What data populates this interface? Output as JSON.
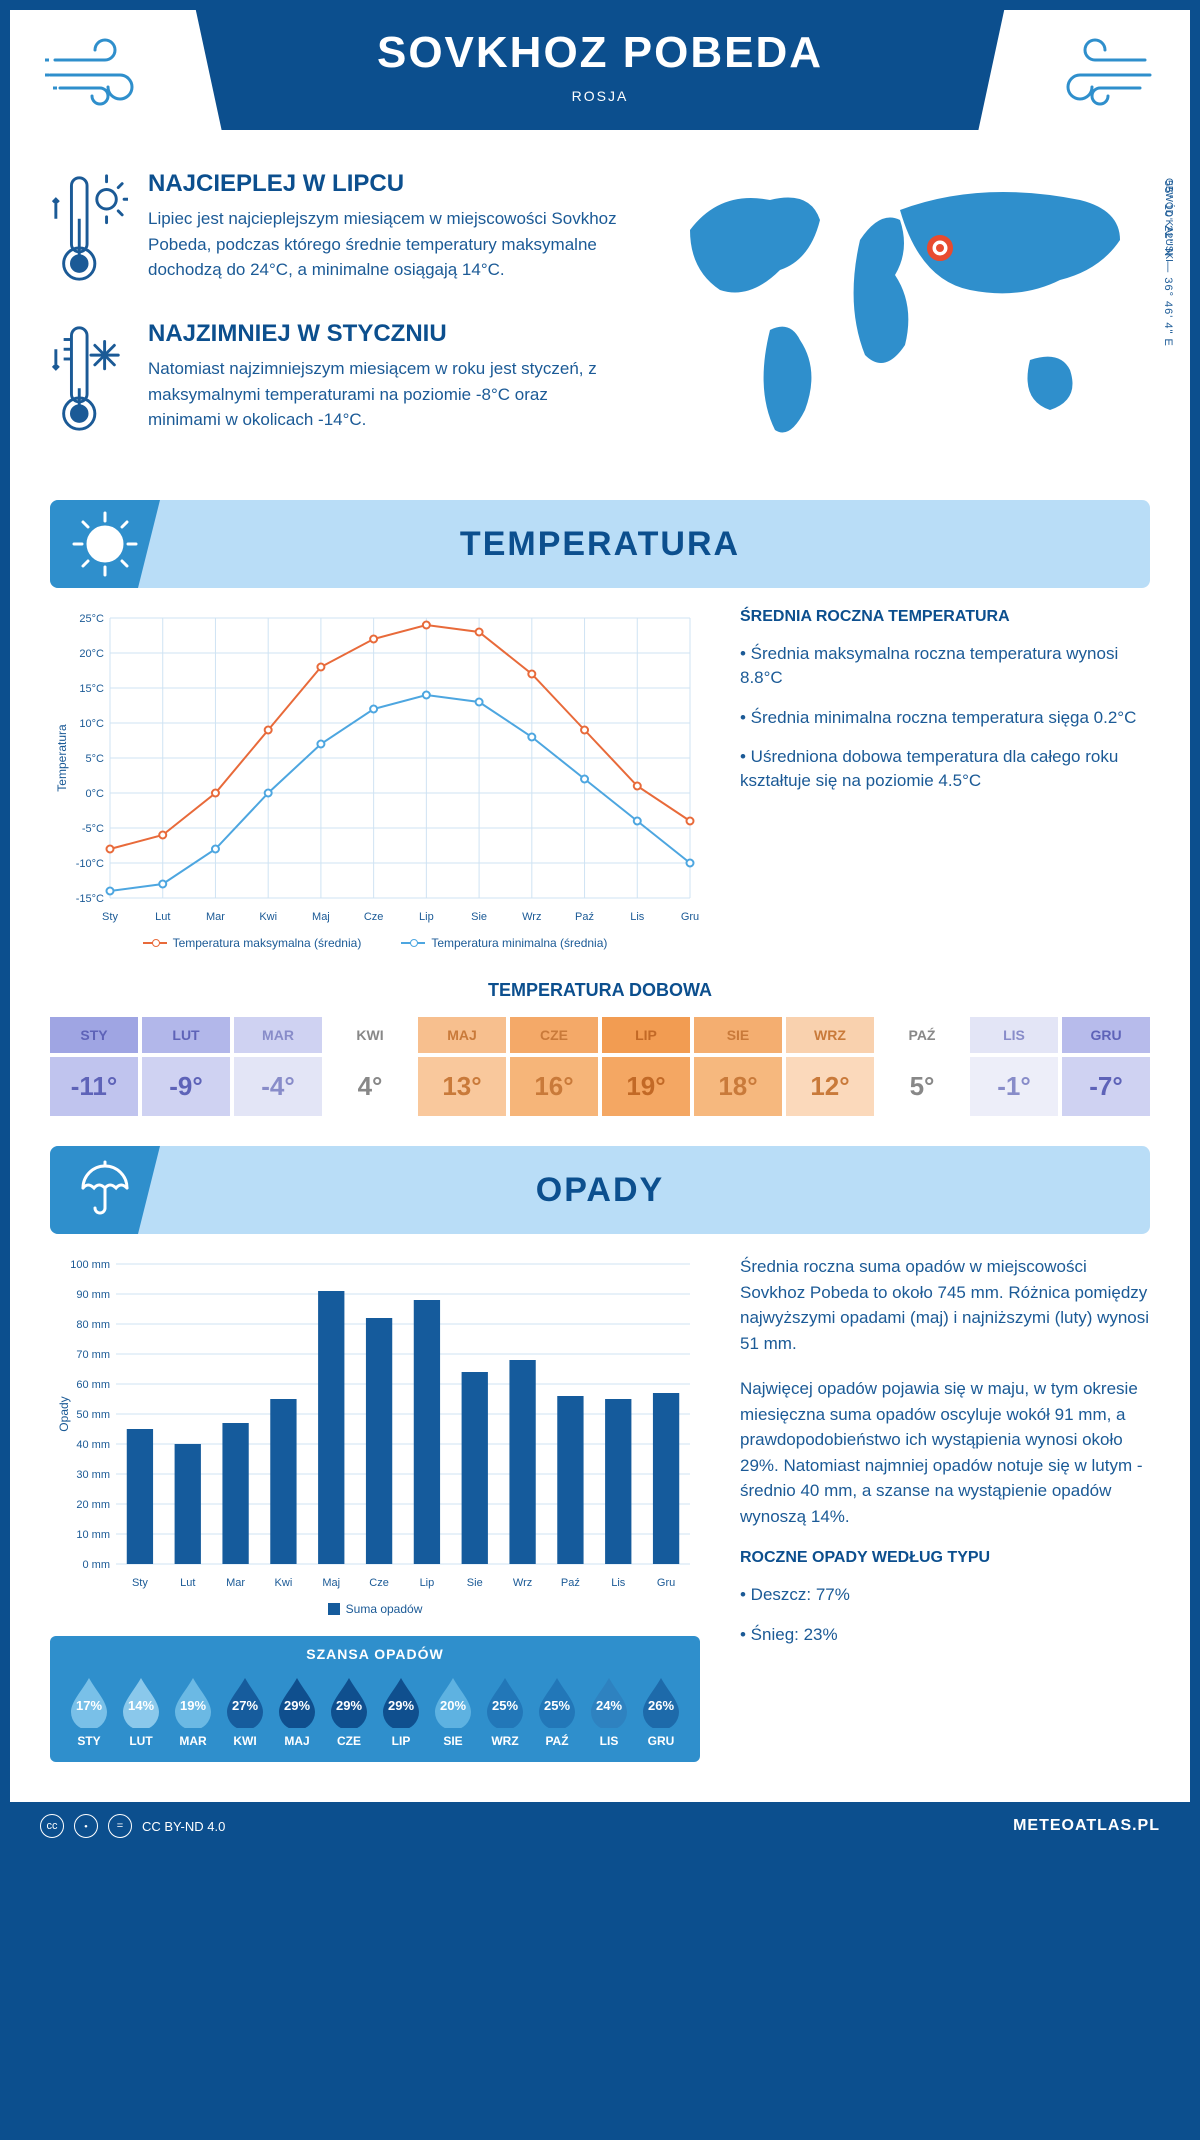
{
  "header": {
    "title": "SOVKHOZ POBEDA",
    "subtitle": "ROSJA"
  },
  "coords": "55° 10' 22\" N — 36° 46' 4\" E",
  "region": "OBWÓD KAŁUSKI",
  "intro": {
    "warm": {
      "title": "NAJCIEPLEJ W LIPCU",
      "text": "Lipiec jest najcieplejszym miesiącem w miejscowości Sovkhoz Pobeda, podczas którego średnie temperatury maksymalne dochodzą do 24°C, a minimalne osiągają 14°C."
    },
    "cold": {
      "title": "NAJZIMNIEJ W STYCZNIU",
      "text": "Natomiast najzimniejszym miesiącem w roku jest styczeń, z maksymalnymi temperaturami na poziomie -8°C oraz minimami w okolicach -14°C."
    }
  },
  "sections": {
    "temp": "TEMPERATURA",
    "precip": "OPADY"
  },
  "months": [
    "Sty",
    "Lut",
    "Mar",
    "Kwi",
    "Maj",
    "Cze",
    "Lip",
    "Sie",
    "Wrz",
    "Paź",
    "Lis",
    "Gru"
  ],
  "months_upper": [
    "STY",
    "LUT",
    "MAR",
    "KWI",
    "MAJ",
    "CZE",
    "LIP",
    "SIE",
    "WRZ",
    "PAŹ",
    "LIS",
    "GRU"
  ],
  "temp_chart": {
    "type": "line",
    "y_title": "Temperatura",
    "y_ticks": [
      -15,
      -10,
      -5,
      0,
      5,
      10,
      15,
      20,
      25
    ],
    "y_tick_labels": [
      "-15°C",
      "-10°C",
      "-5°C",
      "0°C",
      "5°C",
      "10°C",
      "15°C",
      "20°C",
      "25°C"
    ],
    "ylim": [
      -15,
      25
    ],
    "max_color": "#e86a3a",
    "min_color": "#4da6e0",
    "grid_color": "#cfe3f3",
    "series_max": [
      -8,
      -6,
      0,
      9,
      18,
      22,
      24,
      23,
      17,
      9,
      1,
      -4
    ],
    "series_min": [
      -14,
      -13,
      -8,
      0,
      7,
      12,
      14,
      13,
      8,
      2,
      -4,
      -10
    ],
    "legend_max": "Temperatura maksymalna (średnia)",
    "legend_min": "Temperatura minimalna (średnia)"
  },
  "temp_side": {
    "heading": "ŚREDNIA ROCZNA TEMPERATURA",
    "items": [
      "• Średnia maksymalna roczna temperatura wynosi 8.8°C",
      "• Średnia minimalna roczna temperatura sięga 0.2°C",
      "• Uśredniona dobowa temperatura dla całego roku kształtuje się na poziomie 4.5°C"
    ]
  },
  "daily_temp": {
    "heading": "TEMPERATURA DOBOWA",
    "values": [
      "-11°",
      "-9°",
      "-4°",
      "4°",
      "13°",
      "16°",
      "19°",
      "18°",
      "12°",
      "5°",
      "-1°",
      "-7°"
    ],
    "head_bg": [
      "#9fa5e3",
      "#b2b7ea",
      "#cfd2f2",
      "#ffffff",
      "#f7bf8e",
      "#f4a968",
      "#f29c52",
      "#f4ae70",
      "#f9d1ae",
      "#ffffff",
      "#e3e5f6",
      "#b7bbeb"
    ],
    "val_bg": [
      "#c0c4ee",
      "#cfd2f2",
      "#e3e5f6",
      "#ffffff",
      "#f9c89c",
      "#f6b579",
      "#f4a763",
      "#f6b87e",
      "#fbd9bb",
      "#ffffff",
      "#edeef9",
      "#cfd2f2"
    ],
    "text_col": [
      "#5e63b8",
      "#5e63b8",
      "#888cc9",
      "#888888",
      "#c97a3a",
      "#c97a3a",
      "#c26926",
      "#c97a3a",
      "#c97a3a",
      "#888888",
      "#888cc9",
      "#5e63b8"
    ]
  },
  "precip_chart": {
    "type": "bar",
    "y_title": "Opady",
    "bar_color": "#155b9c",
    "grid_color": "#cfe3f3",
    "y_ticks": [
      0,
      10,
      20,
      30,
      40,
      50,
      60,
      70,
      80,
      90,
      100
    ],
    "y_tick_labels": [
      "0 mm",
      "10 mm",
      "20 mm",
      "30 mm",
      "40 mm",
      "50 mm",
      "60 mm",
      "70 mm",
      "80 mm",
      "90 mm",
      "100 mm"
    ],
    "ylim": [
      0,
      100
    ],
    "values": [
      45,
      40,
      47,
      55,
      91,
      82,
      88,
      64,
      68,
      56,
      55,
      57
    ],
    "legend": "Suma opadów"
  },
  "precip_side": {
    "p1": "Średnia roczna suma opadów w miejscowości Sovkhoz Pobeda to około 745 mm. Różnica pomiędzy najwyższymi opadami (maj) i najniższymi (luty) wynosi 51 mm.",
    "p2": "Najwięcej opadów pojawia się w maju, w tym okresie miesięczna suma opadów oscyluje wokół 91 mm, a prawdopodobieństwo ich wystąpienia wynosi około 29%. Natomiast najmniej opadów notuje się w lutym - średnio 40 mm, a szanse na wystąpienie opadów wynoszą 14%.",
    "type_heading": "ROCZNE OPADY WEDŁUG TYPU",
    "type_items": [
      "• Deszcz: 77%",
      "• Śnieg: 23%"
    ]
  },
  "chance": {
    "heading": "SZANSA OPADÓW",
    "values": [
      "17%",
      "14%",
      "19%",
      "27%",
      "29%",
      "29%",
      "29%",
      "20%",
      "25%",
      "25%",
      "24%",
      "26%"
    ],
    "colors": [
      "#79c0e8",
      "#8ac8eb",
      "#6bb9e4",
      "#165c9d",
      "#0f4f8e",
      "#0f4f8e",
      "#0f4f8e",
      "#5eb2e1",
      "#2277b8",
      "#2277b8",
      "#2e82c0",
      "#1d6aaa"
    ]
  },
  "footer": {
    "license": "CC BY-ND 4.0",
    "site": "METEOATLAS.PL"
  }
}
